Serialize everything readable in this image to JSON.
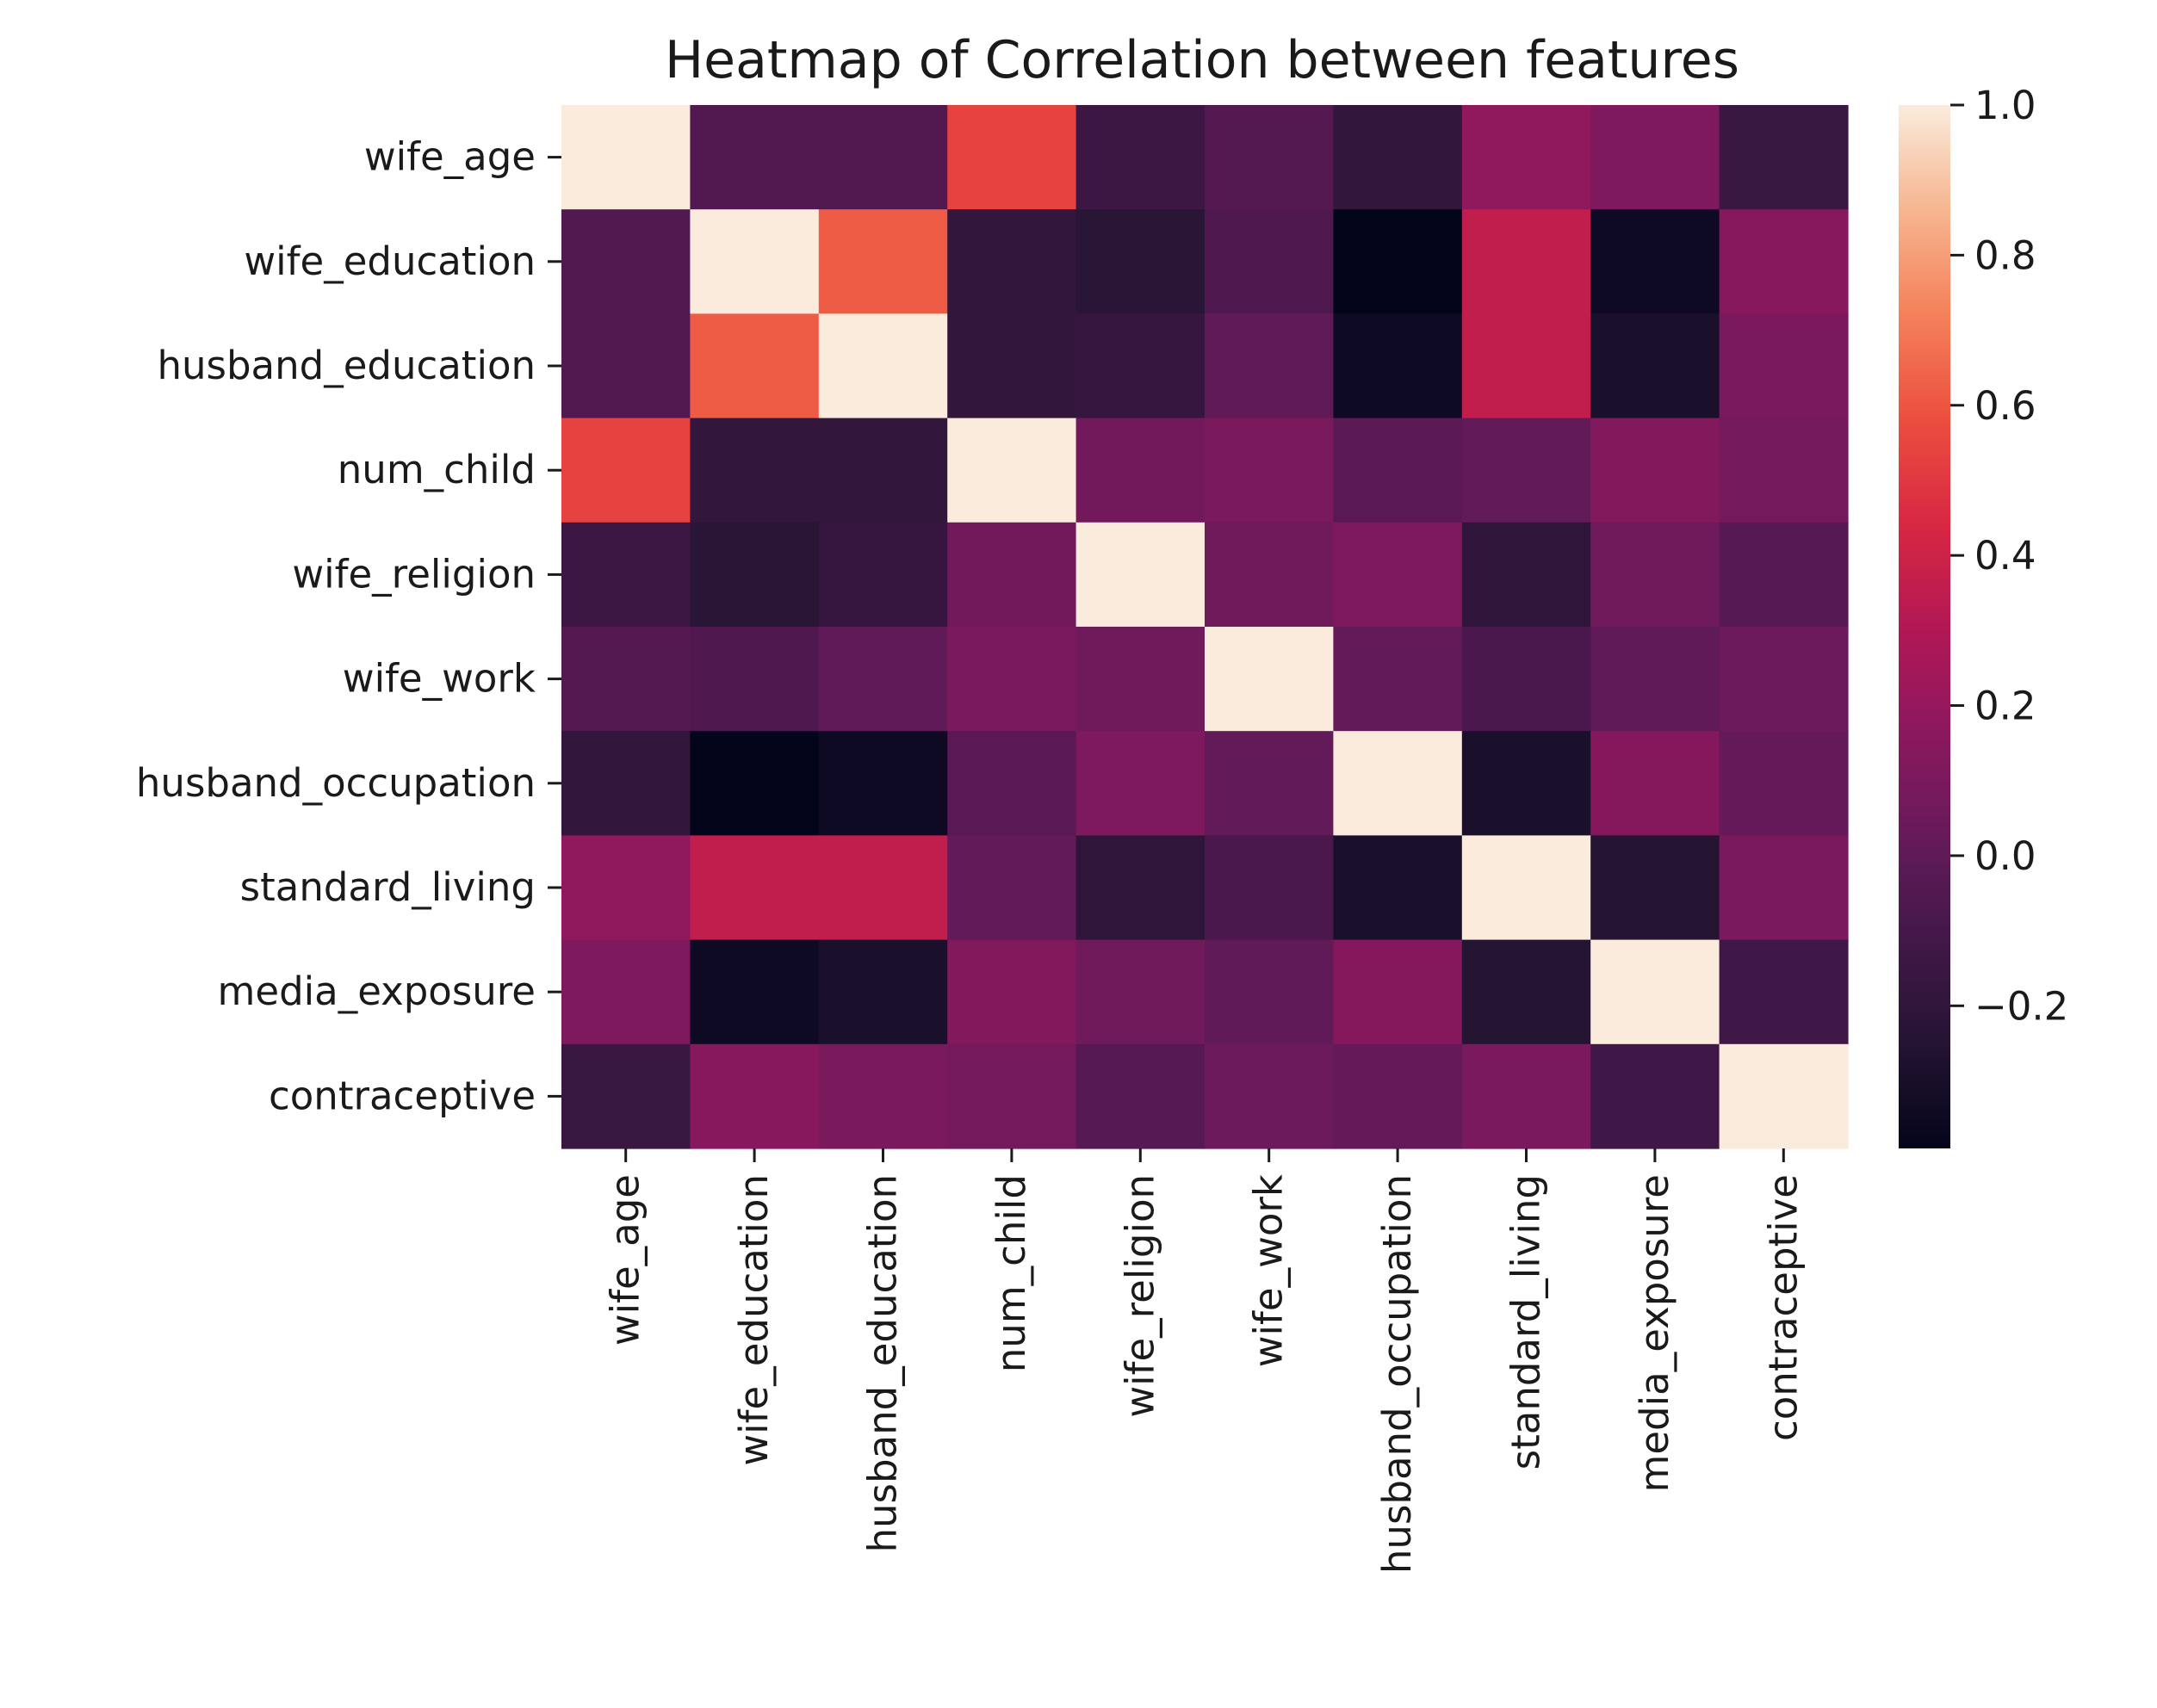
{
  "chart_data": {
    "type": "heatmap",
    "title": "Heatmap of Correlation between features",
    "row_labels": [
      "wife_age",
      "wife_education",
      "husband_education",
      "num_child",
      "wife_religion",
      "wife_work",
      "husband_occupation",
      "standard_living",
      "media_exposure",
      "contraceptive"
    ],
    "col_labels": [
      "wife_age",
      "wife_education",
      "husband_education",
      "num_child",
      "wife_religion",
      "wife_work",
      "husband_occupation",
      "standard_living",
      "media_exposure",
      "contraceptive"
    ],
    "values": [
      [
        1.0,
        -0.05,
        -0.05,
        0.54,
        -0.14,
        -0.04,
        -0.19,
        0.18,
        0.11,
        -0.16
      ],
      [
        -0.05,
        1.0,
        0.62,
        -0.19,
        -0.23,
        -0.06,
        -0.39,
        0.36,
        -0.34,
        0.15
      ],
      [
        -0.05,
        0.62,
        1.0,
        -0.19,
        -0.17,
        0.0,
        -0.34,
        0.36,
        -0.29,
        0.1
      ],
      [
        0.54,
        -0.19,
        -0.19,
        1.0,
        0.07,
        0.1,
        -0.02,
        0.01,
        0.13,
        0.08
      ],
      [
        -0.14,
        -0.23,
        -0.17,
        0.07,
        1.0,
        0.06,
        0.12,
        -0.2,
        0.06,
        -0.03
      ],
      [
        -0.04,
        -0.06,
        0.0,
        0.1,
        0.06,
        1.0,
        0.01,
        -0.08,
        0.0,
        0.05
      ],
      [
        -0.19,
        -0.39,
        -0.34,
        -0.02,
        0.12,
        0.01,
        1.0,
        -0.29,
        0.14,
        0.02
      ],
      [
        0.18,
        0.36,
        0.36,
        0.01,
        -0.2,
        -0.08,
        -0.29,
        1.0,
        -0.25,
        0.1
      ],
      [
        0.11,
        -0.34,
        -0.29,
        0.13,
        0.06,
        0.0,
        0.14,
        -0.25,
        1.0,
        -0.12
      ],
      [
        -0.16,
        0.15,
        0.1,
        0.08,
        -0.03,
        0.05,
        0.02,
        0.1,
        -0.12,
        1.0
      ]
    ],
    "vmin": -0.39,
    "vmax": 1.0,
    "colormap": "rocket",
    "colorbar_ticks": [
      1.0,
      0.8,
      0.6,
      0.4,
      0.2,
      0.0,
      -0.2
    ],
    "colorbar_tick_labels": [
      "1.0",
      "0.8",
      "0.6",
      "0.4",
      "0.2",
      "0.0",
      "−0.2"
    ],
    "grid": false
  }
}
